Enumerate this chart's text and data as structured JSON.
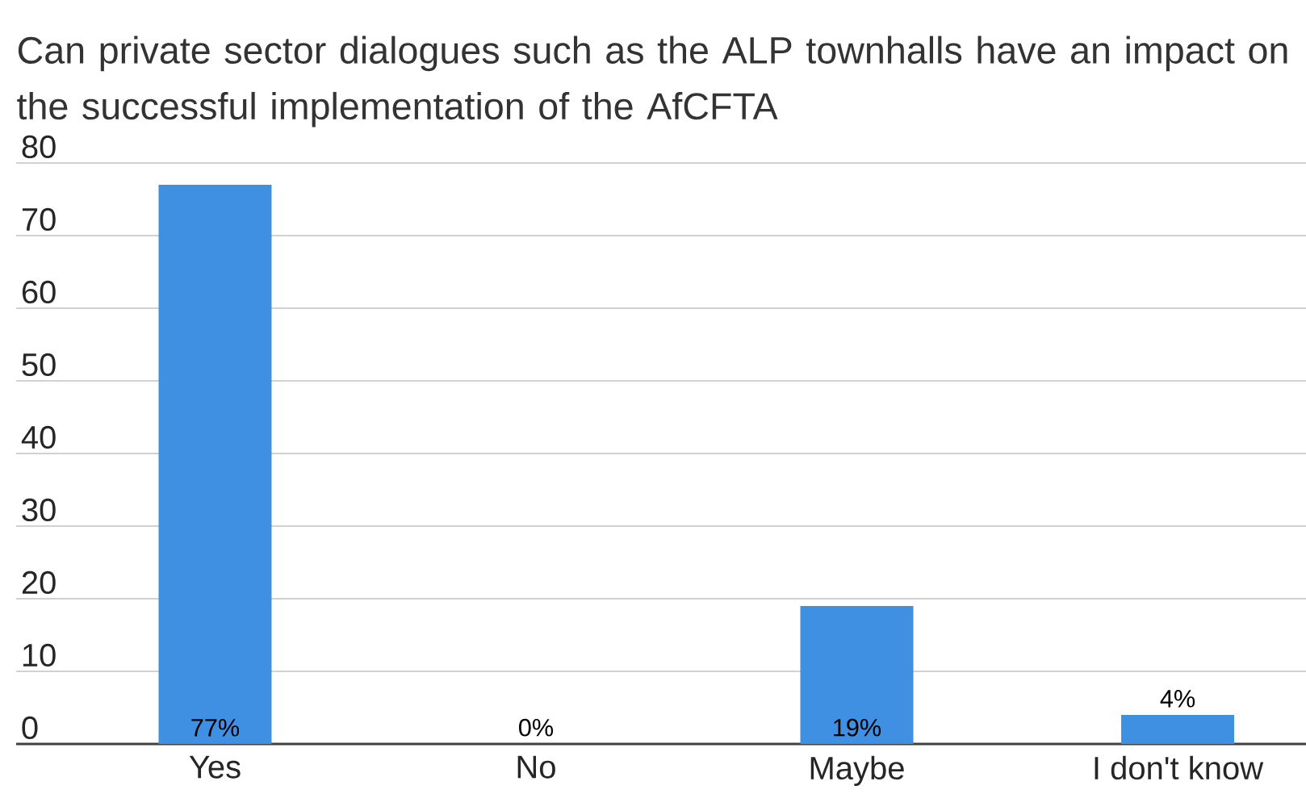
{
  "chart_data": {
    "type": "bar",
    "title": "Can private sector dialogues such as the ALP townhalls have an impact on the successful implementation of the AfCFTA",
    "categories": [
      "Yes",
      "No",
      "Maybe",
      "I don't know"
    ],
    "values": [
      77,
      0,
      19,
      4
    ],
    "value_labels": [
      "77%",
      "0%",
      "19%",
      "4%"
    ],
    "color": "#3f8fe2",
    "ylim": [
      0,
      80
    ],
    "yticks": [
      0,
      10,
      20,
      30,
      40,
      50,
      60,
      70,
      80
    ],
    "grid": "y"
  }
}
